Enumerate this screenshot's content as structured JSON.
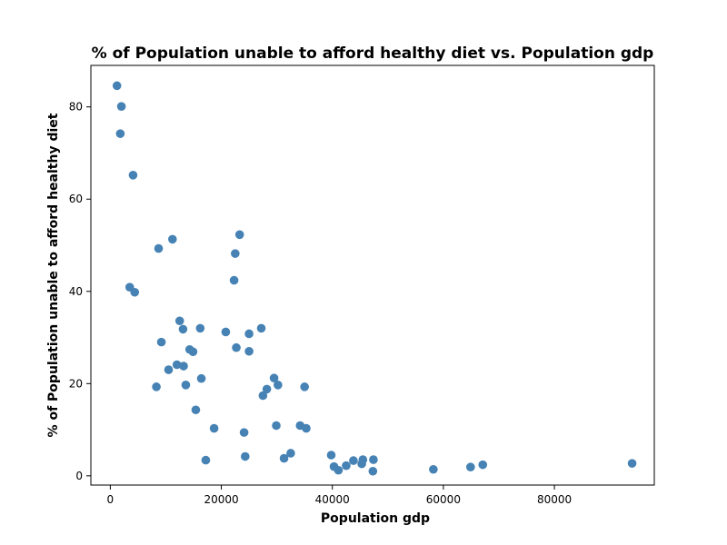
{
  "chart_data": {
    "type": "scatter",
    "title": "% of Population unable to afford healthy diet vs. Population gdp",
    "xlabel": "Population gdp",
    "ylabel": "% of Population unable to afford healthy diet",
    "xlim": [
      -3500,
      98000
    ],
    "ylim": [
      -2,
      89
    ],
    "xticks": [
      0,
      20000,
      40000,
      60000,
      80000
    ],
    "yticks": [
      0,
      20,
      40,
      60,
      80
    ],
    "grid": false,
    "marker_color": "#4682b4",
    "series": [
      {
        "points": [
          [
            1200,
            84.6
          ],
          [
            2000,
            80.1
          ],
          [
            1800,
            74.2
          ],
          [
            4100,
            65.2
          ],
          [
            3500,
            40.9
          ],
          [
            4400,
            39.8
          ],
          [
            8700,
            49.3
          ],
          [
            11200,
            51.3
          ],
          [
            9200,
            29.0
          ],
          [
            8300,
            19.3
          ],
          [
            10500,
            23.0
          ],
          [
            12000,
            24.1
          ],
          [
            12500,
            33.6
          ],
          [
            13100,
            31.8
          ],
          [
            13200,
            23.8
          ],
          [
            13600,
            19.7
          ],
          [
            14300,
            27.4
          ],
          [
            14900,
            26.9
          ],
          [
            15400,
            14.3
          ],
          [
            16200,
            32.0
          ],
          [
            16400,
            21.1
          ],
          [
            17200,
            3.4
          ],
          [
            18700,
            10.3
          ],
          [
            20800,
            31.2
          ],
          [
            22300,
            42.4
          ],
          [
            22500,
            48.2
          ],
          [
            22700,
            27.8
          ],
          [
            23300,
            52.3
          ],
          [
            24100,
            9.4
          ],
          [
            24300,
            4.2
          ],
          [
            25000,
            30.8
          ],
          [
            25000,
            27.0
          ],
          [
            27200,
            32.0
          ],
          [
            27500,
            17.4
          ],
          [
            28200,
            18.8
          ],
          [
            29500,
            21.2
          ],
          [
            29900,
            10.9
          ],
          [
            30200,
            19.7
          ],
          [
            31300,
            3.8
          ],
          [
            32500,
            4.9
          ],
          [
            34200,
            10.9
          ],
          [
            35000,
            19.3
          ],
          [
            35300,
            10.3
          ],
          [
            39800,
            4.5
          ],
          [
            40300,
            2.0
          ],
          [
            41100,
            1.2
          ],
          [
            42500,
            2.2
          ],
          [
            43800,
            3.3
          ],
          [
            45300,
            2.6
          ],
          [
            45500,
            3.5
          ],
          [
            47300,
            1.0
          ],
          [
            47400,
            3.5
          ],
          [
            58200,
            1.4
          ],
          [
            64900,
            1.9
          ],
          [
            67100,
            2.4
          ],
          [
            94000,
            2.7
          ]
        ]
      }
    ]
  }
}
